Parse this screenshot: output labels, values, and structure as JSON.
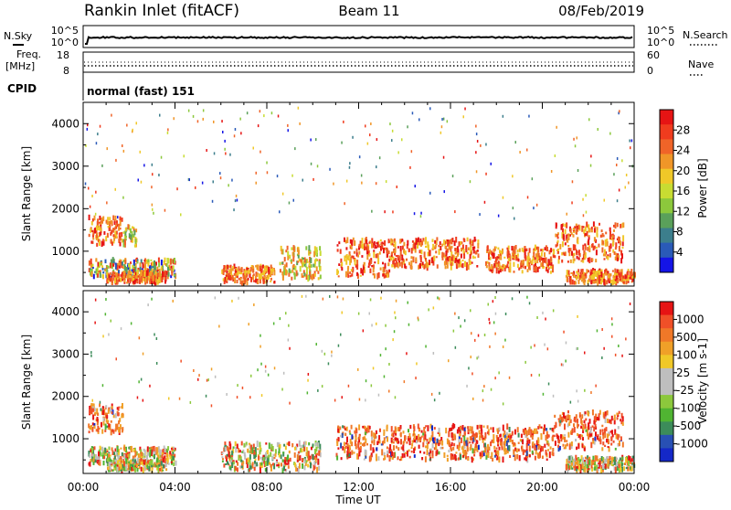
{
  "header": {
    "station": "Rankin Inlet (fitACF)",
    "beam": "Beam 11",
    "date": "08/Feb/2019"
  },
  "strip": {
    "nsky_label": "N.Sky",
    "nsearch_label": "N.Search",
    "freq_label_top": "Freq.",
    "freq_label_unit": "[MHz]",
    "nave_label": "Nave",
    "cpid_label": "CPID",
    "cpid_value": "normal (fast) 151",
    "noise_left_ticks": [
      "10^5",
      "10^0"
    ],
    "noise_right_ticks": [
      "10^5",
      "10^0"
    ],
    "freq_ticks": [
      "18",
      "8"
    ],
    "nave_ticks": [
      "60",
      "0"
    ]
  },
  "chart_data": [
    {
      "type": "heatmap",
      "panel": "power",
      "ylabel": "Slant Range [km]",
      "x_ticks": [
        "00:00",
        "04:00",
        "08:00",
        "12:00",
        "16:00",
        "20:00",
        "00:00"
      ],
      "y_ticks": [
        1000,
        2000,
        3000,
        4000
      ],
      "ylim": [
        180,
        4500
      ],
      "xlim_hours": [
        0,
        24
      ],
      "colorbar": {
        "label": "Power [dB]",
        "ticks": [
          "4",
          "8",
          "12",
          "16",
          "20",
          "24",
          "28"
        ],
        "colors": [
          "#1414e6",
          "#2a5ab8",
          "#3c7e8c",
          "#5aa05a",
          "#8cc83c",
          "#c8dc32",
          "#f0c828",
          "#f09628",
          "#f06428",
          "#f03c1e",
          "#e61414"
        ]
      },
      "regions": [
        {
          "t0": 0.2,
          "t1": 1.7,
          "r0": 1150,
          "r1": 1800,
          "level": "high"
        },
        {
          "t0": 1.7,
          "t1": 2.3,
          "r0": 1100,
          "r1": 1600,
          "level": "mid"
        },
        {
          "t0": 0.2,
          "t1": 4.0,
          "r0": 400,
          "r1": 800,
          "level": "mixed"
        },
        {
          "t0": 1.0,
          "t1": 3.6,
          "r0": 250,
          "r1": 500,
          "level": "high"
        },
        {
          "t0": 6.0,
          "t1": 8.3,
          "r0": 250,
          "r1": 650,
          "level": "high"
        },
        {
          "t0": 8.5,
          "t1": 10.3,
          "r0": 350,
          "r1": 1100,
          "level": "mid"
        },
        {
          "t0": 11.0,
          "t1": 13.3,
          "r0": 400,
          "r1": 1300,
          "level": "high"
        },
        {
          "t0": 13.3,
          "t1": 17.2,
          "r0": 600,
          "r1": 1300,
          "level": "high"
        },
        {
          "t0": 17.5,
          "t1": 20.5,
          "r0": 500,
          "r1": 1100,
          "level": "high"
        },
        {
          "t0": 20.5,
          "t1": 23.5,
          "r0": 750,
          "r1": 1650,
          "level": "high"
        },
        {
          "t0": 21.0,
          "t1": 24.0,
          "r0": 250,
          "r1": 550,
          "level": "high"
        }
      ]
    },
    {
      "type": "heatmap",
      "panel": "velocity",
      "ylabel": "Slant Range [km]",
      "xlabel": "Time UT",
      "x_ticks": [
        "00:00",
        "04:00",
        "08:00",
        "12:00",
        "16:00",
        "20:00",
        "00:00"
      ],
      "y_ticks": [
        1000,
        2000,
        3000,
        4000
      ],
      "ylim": [
        180,
        4500
      ],
      "xlim_hours": [
        0,
        24
      ],
      "colorbar": {
        "label": "Velocity [m s-1]",
        "ticks": [
          "1000",
          "500",
          "100",
          "25",
          "-25",
          "-100",
          "-500",
          "-1000"
        ],
        "colors": [
          "#1428c8",
          "#2850b4",
          "#3c8c5a",
          "#50b432",
          "#8cc83c",
          "#bebebe",
          "#bebebe",
          "#f0c828",
          "#f0a028",
          "#f07828",
          "#f05028",
          "#e61414"
        ]
      },
      "regions": [
        {
          "t0": 0.2,
          "t1": 1.7,
          "r0": 1150,
          "r1": 1800,
          "level": "neg"
        },
        {
          "t0": 0.2,
          "t1": 4.0,
          "r0": 400,
          "r1": 800,
          "level": "mixed"
        },
        {
          "t0": 1.0,
          "t1": 3.6,
          "r0": 250,
          "r1": 500,
          "level": "mixed"
        },
        {
          "t0": 6.0,
          "t1": 10.3,
          "r0": 250,
          "r1": 900,
          "level": "mixed"
        },
        {
          "t0": 11.0,
          "t1": 20.5,
          "r0": 500,
          "r1": 1300,
          "level": "neg"
        },
        {
          "t0": 20.5,
          "t1": 23.5,
          "r0": 750,
          "r1": 1650,
          "level": "neg"
        },
        {
          "t0": 21.0,
          "t1": 24.0,
          "r0": 250,
          "r1": 550,
          "level": "mixed"
        }
      ]
    }
  ]
}
